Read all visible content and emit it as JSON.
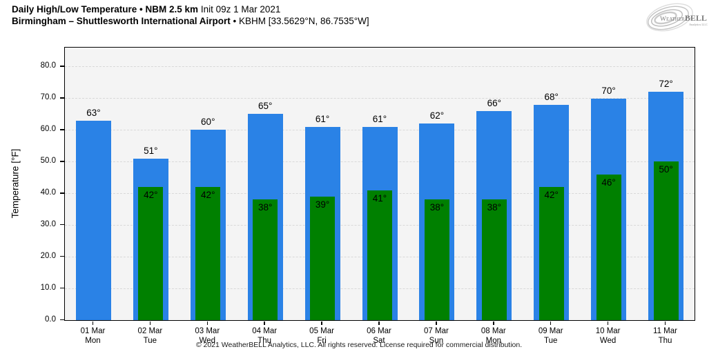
{
  "header": {
    "title_bold": "Daily High/Low Temperature • NBM 2.5 km",
    "title_regular": "Init 09z 1 Mar 2021",
    "subtitle_bold": "Birmingham – Shuttlesworth International Airport",
    "subtitle_regular": "• KBHM [33.5629°N, 86.7535°W]"
  },
  "logo": {
    "part1": "Weather",
    "part2": "BELL",
    "subtext": "Analytics LLC"
  },
  "footer": "© 2021 WeatherBELL Analytics, LLC. All rights reserved. License required for commercial distribution.",
  "chart_data": {
    "type": "bar",
    "title": "Daily High/Low Temperature • NBM 2.5 km",
    "ylabel": "Temperature [°F]",
    "ylim": [
      0,
      86
    ],
    "yticks": [
      0,
      10,
      20,
      30,
      40,
      50,
      60,
      70,
      80
    ],
    "grid": true,
    "legend_position": "none",
    "plot_bg": "#f4f4f4",
    "grid_color": "#d8d8d8",
    "categories": [
      {
        "date": "01 Mar",
        "day": "Mon"
      },
      {
        "date": "02 Mar",
        "day": "Tue"
      },
      {
        "date": "03 Mar",
        "day": "Wed"
      },
      {
        "date": "04 Mar",
        "day": "Thu"
      },
      {
        "date": "05 Mar",
        "day": "Fri"
      },
      {
        "date": "06 Mar",
        "day": "Sat"
      },
      {
        "date": "07 Mar",
        "day": "Sun"
      },
      {
        "date": "08 Mar",
        "day": "Mon"
      },
      {
        "date": "09 Mar",
        "day": "Tue"
      },
      {
        "date": "10 Mar",
        "day": "Wed"
      },
      {
        "date": "11 Mar",
        "day": "Thu"
      }
    ],
    "series": [
      {
        "name": "Daily High",
        "color": "#2a82e6",
        "unit": "°",
        "values": [
          63,
          51,
          60,
          65,
          61,
          61,
          62,
          66,
          68,
          70,
          72
        ]
      },
      {
        "name": "Daily Low",
        "color": "#008000",
        "unit": "°",
        "values": [
          null,
          42,
          42,
          38,
          39,
          41,
          38,
          38,
          42,
          46,
          50
        ]
      }
    ]
  }
}
